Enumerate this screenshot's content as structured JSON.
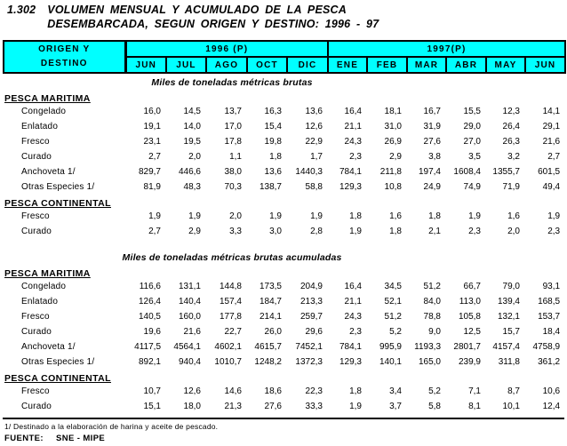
{
  "title": {
    "number": "1.302",
    "line1": "VOLUMEN MENSUAL Y ACUMULADO DE LA PESCA",
    "line2": "DESEMBARCADA, SEGUN ORIGEN Y DESTINO: 1996 - 97"
  },
  "header": {
    "header_bg": "#00FFFF",
    "origin_label_line1": "ORIGEN Y",
    "origin_label_line2": "DESTINO",
    "year_groups": [
      {
        "label": "1996 (P)",
        "months": [
          "JUN",
          "JUL",
          "AGO",
          "OCT",
          "DIC"
        ]
      },
      {
        "label": "1997(P)",
        "months": [
          "ENE",
          "FEB",
          "MAR",
          "ABR",
          "MAY",
          "JUN"
        ]
      }
    ]
  },
  "sections": [
    {
      "unit_title": "Miles de toneladas métricas brutas",
      "groups": [
        {
          "name": "PESCA MARITIMA",
          "rows": [
            {
              "label": "Congelado",
              "values": [
                "16,0",
                "14,5",
                "13,7",
                "16,3",
                "13,6",
                "16,4",
                "18,1",
                "16,7",
                "15,5",
                "12,3",
                "14,1"
              ]
            },
            {
              "label": "Enlatado",
              "values": [
                "19,1",
                "14,0",
                "17,0",
                "15,4",
                "12,6",
                "21,1",
                "31,0",
                "31,9",
                "29,0",
                "26,4",
                "29,1"
              ]
            },
            {
              "label": "Fresco",
              "values": [
                "23,1",
                "19,5",
                "17,8",
                "19,8",
                "22,9",
                "24,3",
                "26,9",
                "27,6",
                "27,0",
                "26,3",
                "21,6"
              ]
            },
            {
              "label": "Curado",
              "values": [
                "2,7",
                "2,0",
                "1,1",
                "1,8",
                "1,7",
                "2,3",
                "2,9",
                "3,8",
                "3,5",
                "3,2",
                "2,7"
              ]
            },
            {
              "label": "Anchoveta 1/",
              "values": [
                "829,7",
                "446,6",
                "38,0",
                "13,6",
                "1440,3",
                "784,1",
                "211,8",
                "197,4",
                "1608,4",
                "1355,7",
                "601,5"
              ]
            },
            {
              "label": "Otras Especies 1/",
              "values": [
                "81,9",
                "48,3",
                "70,3",
                "138,7",
                "58,8",
                "129,3",
                "10,8",
                "24,9",
                "74,9",
                "71,9",
                "49,4"
              ]
            }
          ]
        },
        {
          "name": "PESCA CONTINENTAL",
          "rows": [
            {
              "label": "Fresco",
              "values": [
                "1,9",
                "1,9",
                "2,0",
                "1,9",
                "1,9",
                "1,8",
                "1,6",
                "1,8",
                "1,9",
                "1,6",
                "1,9"
              ]
            },
            {
              "label": "Curado",
              "values": [
                "2,7",
                "2,9",
                "3,3",
                "3,0",
                "2,8",
                "1,9",
                "1,8",
                "2,1",
                "2,3",
                "2,0",
                "2,3"
              ]
            }
          ]
        }
      ]
    },
    {
      "unit_title": "Miles de toneladas métricas brutas acumuladas",
      "groups": [
        {
          "name": "PESCA MARITIMA",
          "rows": [
            {
              "label": "Congelado",
              "values": [
                "116,6",
                "131,1",
                "144,8",
                "173,5",
                "204,9",
                "16,4",
                "34,5",
                "51,2",
                "66,7",
                "79,0",
                "93,1"
              ]
            },
            {
              "label": "Enlatado",
              "values": [
                "126,4",
                "140,4",
                "157,4",
                "184,7",
                "213,3",
                "21,1",
                "52,1",
                "84,0",
                "113,0",
                "139,4",
                "168,5"
              ]
            },
            {
              "label": "Fresco",
              "values": [
                "140,5",
                "160,0",
                "177,8",
                "214,1",
                "259,7",
                "24,3",
                "51,2",
                "78,8",
                "105,8",
                "132,1",
                "153,7"
              ]
            },
            {
              "label": "Curado",
              "values": [
                "19,6",
                "21,6",
                "22,7",
                "26,0",
                "29,6",
                "2,3",
                "5,2",
                "9,0",
                "12,5",
                "15,7",
                "18,4"
              ]
            },
            {
              "label": "Anchoveta 1/",
              "values": [
                "4117,5",
                "4564,1",
                "4602,1",
                "4615,7",
                "7452,1",
                "784,1",
                "995,9",
                "1193,3",
                "2801,7",
                "4157,4",
                "4758,9"
              ]
            },
            {
              "label": "Otras Especies 1/",
              "values": [
                "892,1",
                "940,4",
                "1010,7",
                "1248,2",
                "1372,3",
                "129,3",
                "140,1",
                "165,0",
                "239,9",
                "311,8",
                "361,2"
              ]
            }
          ]
        },
        {
          "name": "PESCA CONTINENTAL",
          "rows": [
            {
              "label": "Fresco",
              "values": [
                "10,7",
                "12,6",
                "14,6",
                "18,6",
                "22,3",
                "1,8",
                "3,4",
                "5,2",
                "7,1",
                "8,7",
                "10,6"
              ]
            },
            {
              "label": "Curado",
              "values": [
                "15,1",
                "18,0",
                "21,3",
                "27,6",
                "33,3",
                "1,9",
                "3,7",
                "5,8",
                "8,1",
                "10,1",
                "12,4"
              ]
            }
          ]
        }
      ]
    }
  ],
  "footnote": "1/ Destinado a la elaboración de harina y aceite de pescado.",
  "source": {
    "label": "FUENTE:",
    "value": "SNE - MIPE"
  }
}
